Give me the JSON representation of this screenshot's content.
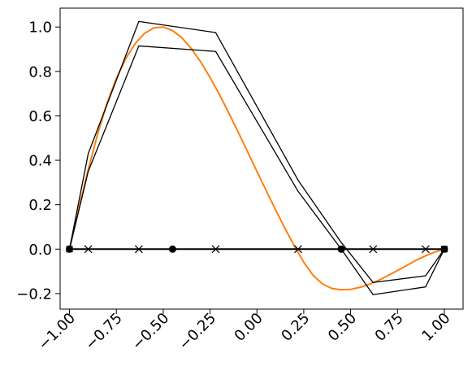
{
  "chart_data": {
    "type": "line",
    "title": "",
    "xlabel": "",
    "ylabel": "",
    "xlim": [
      -1.05,
      1.1
    ],
    "ylim": [
      -0.27,
      1.085
    ],
    "x_ticks": [
      -1.0,
      -0.75,
      -0.5,
      -0.25,
      0.0,
      0.25,
      0.5,
      0.75,
      1.0
    ],
    "x_tick_labels": [
      "−1.00",
      "−0.75",
      "−0.50",
      "−0.25",
      "0.00",
      "0.25",
      "0.50",
      "0.75",
      "1.00"
    ],
    "y_ticks": [
      -0.2,
      0.0,
      0.2,
      0.4,
      0.6,
      0.8,
      1.0
    ],
    "y_tick_labels": [
      "−0.2",
      "0.0",
      "0.2",
      "0.4",
      "0.6",
      "0.8",
      "1.0"
    ],
    "grid": false,
    "legend": "none",
    "series": [
      {
        "style": "curve",
        "color": "#ff7f0e",
        "x": [
          -1.0,
          -0.95,
          -0.9,
          -0.85,
          -0.8,
          -0.75,
          -0.7,
          -0.65,
          -0.6,
          -0.55,
          -0.5,
          -0.45,
          -0.4,
          -0.35,
          -0.3,
          -0.25,
          -0.2,
          -0.15,
          -0.1,
          -0.05,
          0.0,
          0.05,
          0.1,
          0.15,
          0.2,
          0.25,
          0.3,
          0.35,
          0.4,
          0.45,
          0.5,
          0.55,
          0.6,
          0.65,
          0.7,
          0.75,
          0.8,
          0.85,
          0.9,
          0.95,
          1.0
        ],
        "y": [
          0.0,
          0.183,
          0.358,
          0.518,
          0.656,
          0.769,
          0.857,
          0.925,
          0.971,
          0.996,
          1.0,
          0.984,
          0.951,
          0.903,
          0.843,
          0.773,
          0.696,
          0.613,
          0.527,
          0.439,
          0.35,
          0.263,
          0.176,
          0.093,
          0.014,
          -0.059,
          -0.118,
          -0.157,
          -0.177,
          -0.183,
          -0.181,
          -0.172,
          -0.158,
          -0.14,
          -0.119,
          -0.096,
          -0.073,
          -0.05,
          -0.03,
          -0.013,
          0.0
        ]
      },
      {
        "style": "black-outline-upper",
        "color": "#000000",
        "x": [
          -1.0,
          -0.9,
          -0.63,
          -0.22,
          0.22,
          0.45,
          0.62,
          0.9,
          1.0
        ],
        "y": [
          0.0,
          0.43,
          1.025,
          0.975,
          0.31,
          0.03,
          -0.15,
          -0.12,
          0.0
        ]
      },
      {
        "style": "black-outline-lower",
        "color": "#000000",
        "x": [
          -1.0,
          -0.9,
          -0.63,
          -0.22,
          0.22,
          0.45,
          0.62,
          0.9,
          1.0
        ],
        "y": [
          0.0,
          0.35,
          0.915,
          0.89,
          0.26,
          0.0,
          -0.205,
          -0.17,
          0.0
        ]
      },
      {
        "style": "baseline",
        "color": "#000000",
        "x": [
          -1.0,
          1.0
        ],
        "y": [
          0.0,
          0.0
        ]
      }
    ],
    "markers": {
      "crosses_x": [
        -0.9,
        -0.63,
        -0.22,
        0.22,
        0.62,
        0.9
      ],
      "dots_x": [
        -1.0,
        -0.45,
        0.45,
        1.0
      ],
      "squares_x": [
        -1.0,
        1.0
      ],
      "y": 0.0
    }
  }
}
